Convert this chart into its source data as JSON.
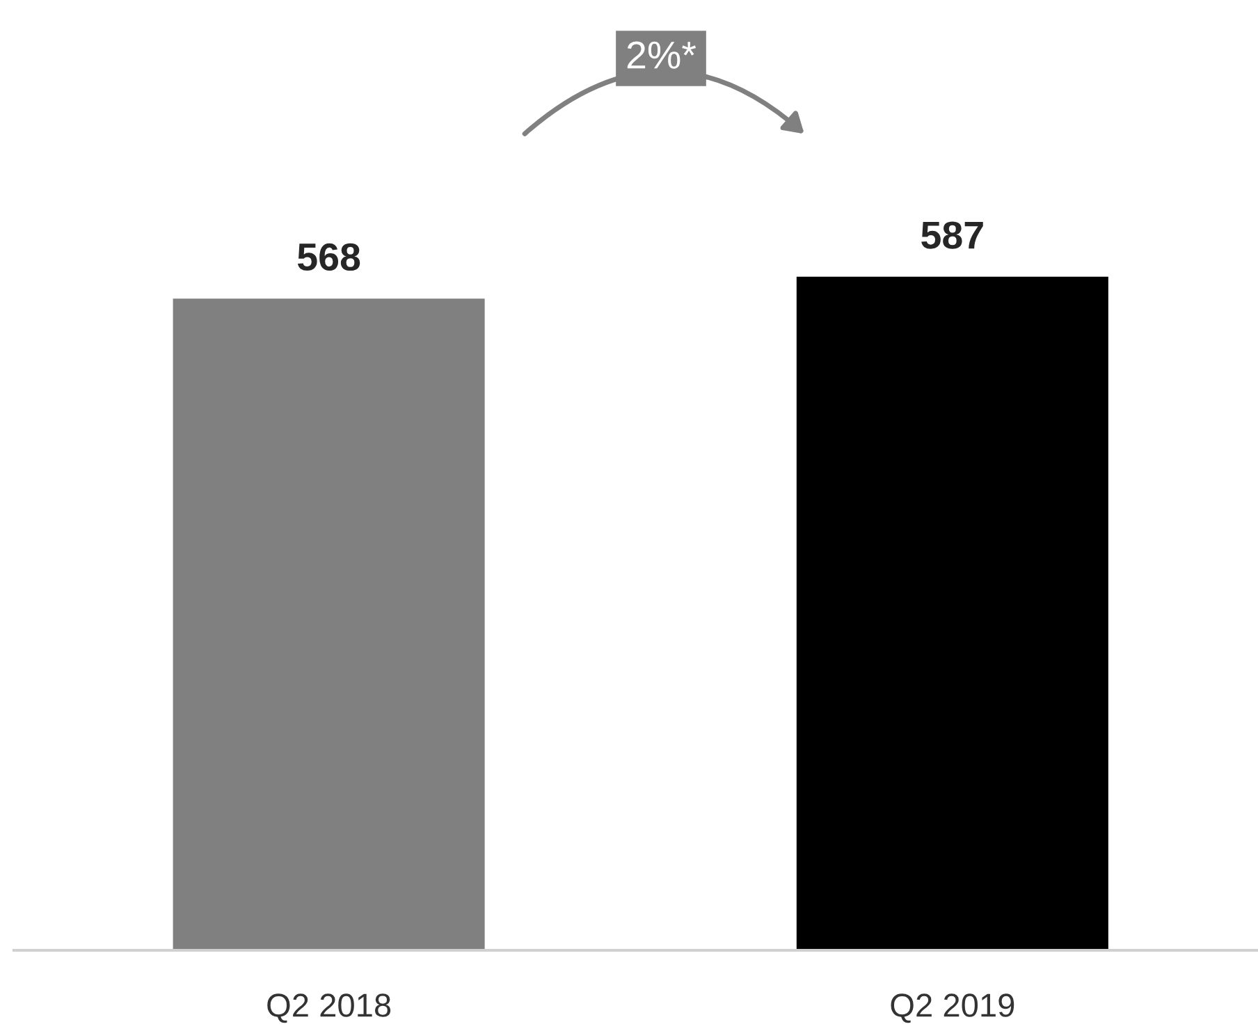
{
  "chart_data": {
    "type": "bar",
    "categories": [
      "Q2 2018",
      "Q2 2019"
    ],
    "values": [
      568,
      587
    ],
    "colors": [
      "#808080",
      "#000000"
    ],
    "data_labels": true,
    "grid": false,
    "legend": false,
    "annotations": [
      "2%*"
    ]
  }
}
